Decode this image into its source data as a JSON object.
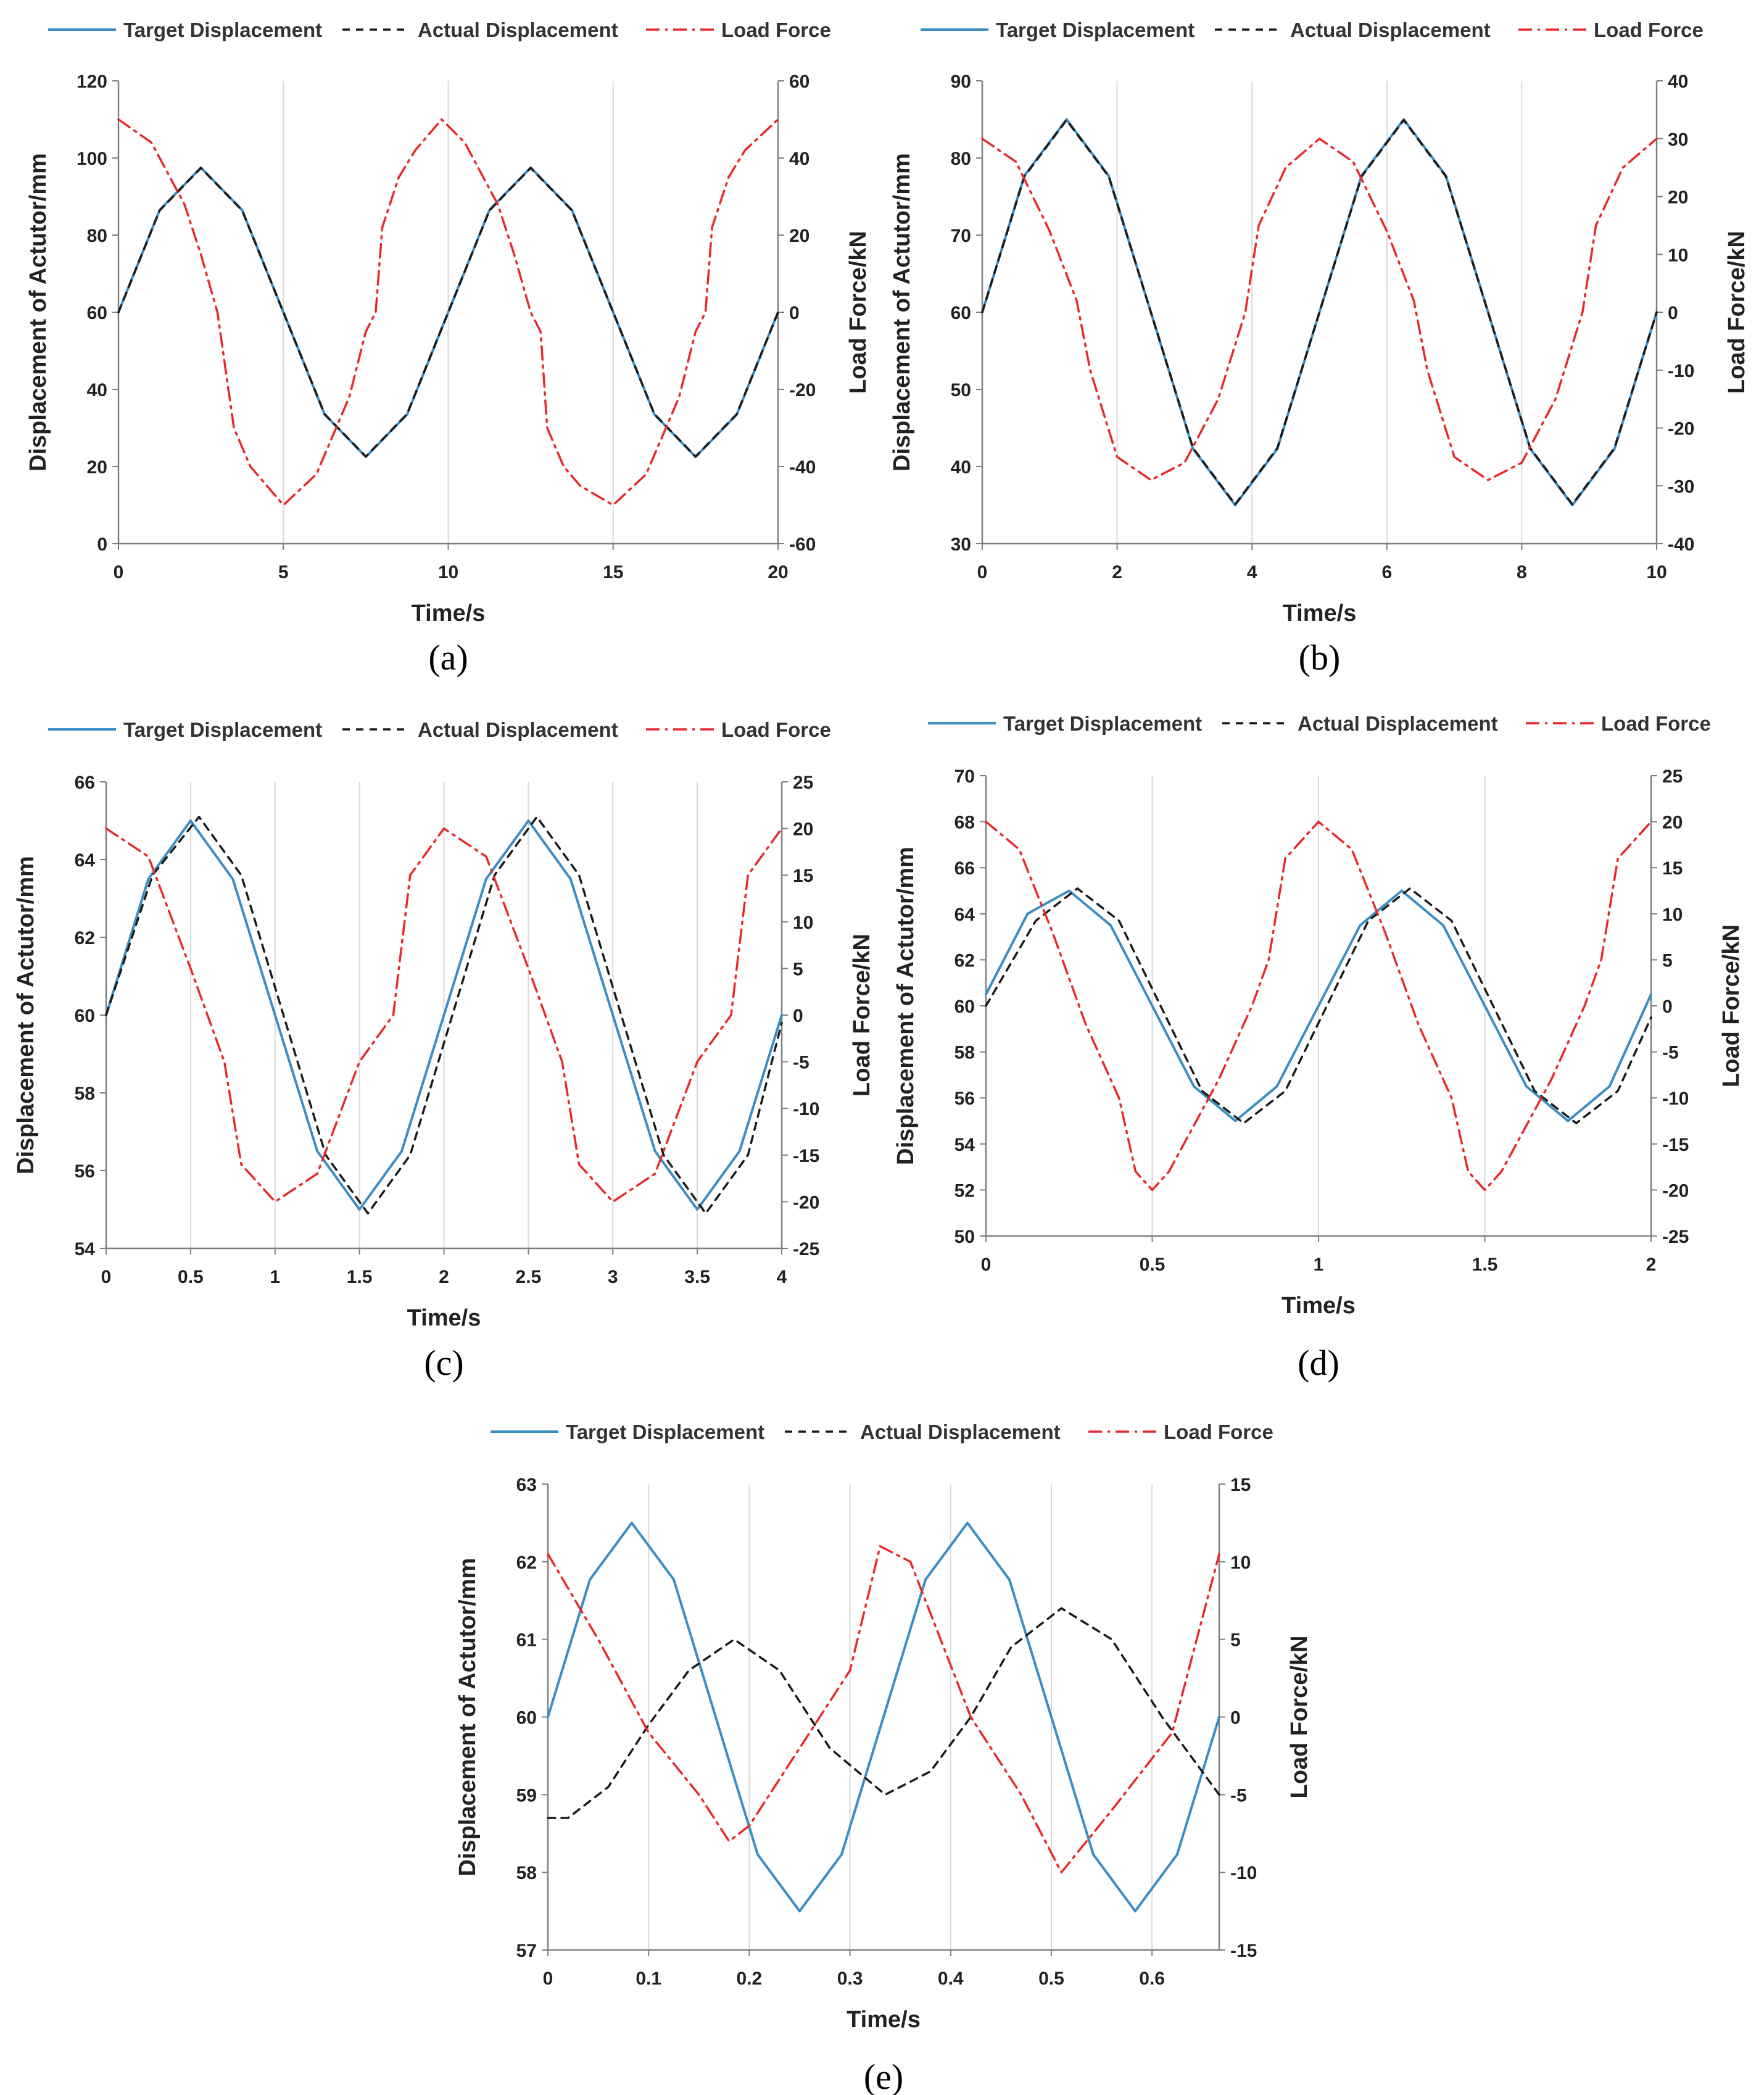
{
  "colors": {
    "target": "#3c8dc4",
    "actual": "#1a1a1a",
    "force": "#e8292b",
    "grid": "#d9d9d9",
    "axis": "#7f7f7f"
  },
  "chart_data": [
    {
      "id": "a",
      "type": "line",
      "panel_label": "(a)",
      "xlabel": "Time/s",
      "ylabel": "Displacement of Actutor/mm",
      "y2label": "Load Force/kN",
      "legend": [
        "Target Displacement",
        "Actual Displacement",
        "Load Force"
      ],
      "legend_position": "top",
      "grid": "vertical",
      "xlim": [
        0,
        20
      ],
      "ylim": [
        0,
        120
      ],
      "y2lim": [
        -60,
        60
      ],
      "xticks": [
        0,
        5,
        10,
        15,
        20
      ],
      "xtick_labels": [
        "0",
        "5",
        "10",
        "15",
        "20"
      ],
      "yticks": [
        0,
        20,
        40,
        60,
        80,
        100,
        120
      ],
      "ytick_labels": [
        "0",
        "20",
        "40",
        "60",
        "80",
        "100",
        "120"
      ],
      "y2ticks": [
        -60,
        -40,
        -20,
        0,
        20,
        40,
        60
      ],
      "y2tick_labels": [
        "-60",
        "-40",
        "-20",
        "0",
        "20",
        "40",
        "60"
      ],
      "series": [
        {
          "name": "Target Displacement",
          "axis": "left",
          "style": "solid",
          "x": [
            0,
            1.25,
            2.5,
            3.75,
            5,
            6.25,
            7.5,
            8.75,
            10,
            11.25,
            12.5,
            13.75,
            15,
            16.25,
            17.5,
            18.75,
            20
          ],
          "y": [
            60,
            86.5,
            97.5,
            86.5,
            60,
            33.5,
            22.5,
            33.5,
            60,
            86.5,
            97.5,
            86.5,
            60,
            33.5,
            22.5,
            33.5,
            60
          ]
        },
        {
          "name": "Actual Displacement",
          "axis": "left",
          "style": "dashed",
          "x": [
            0,
            1.25,
            2.5,
            3.75,
            5,
            6.25,
            7.5,
            8.75,
            10,
            11.25,
            12.5,
            13.75,
            15,
            16.25,
            17.5,
            18.75,
            20
          ],
          "y": [
            60,
            86.4,
            97.4,
            86.4,
            60,
            33.6,
            22.6,
            33.6,
            60,
            86.4,
            97.4,
            86.4,
            60,
            33.6,
            22.6,
            33.6,
            60
          ]
        },
        {
          "name": "Load Force",
          "axis": "right",
          "style": "dashdot",
          "x": [
            0,
            1,
            2,
            2.5,
            3,
            3.5,
            4,
            5,
            6,
            7,
            7.5,
            7.8,
            8,
            8.5,
            9,
            9.8,
            10.5,
            11.5,
            12,
            12.5,
            12.8,
            13,
            13.5,
            14,
            15,
            16,
            17,
            17.5,
            17.8,
            18,
            18.5,
            19,
            20
          ],
          "y": [
            50,
            44,
            28,
            15,
            0,
            -30,
            -40,
            -50,
            -42,
            -22,
            -5,
            0,
            22,
            35,
            42,
            50,
            44,
            28,
            15,
            0,
            -5,
            -30,
            -40,
            -45,
            -50,
            -42,
            -22,
            -5,
            0,
            22,
            35,
            42,
            50
          ]
        }
      ]
    },
    {
      "id": "b",
      "type": "line",
      "panel_label": "(b)",
      "xlabel": "Time/s",
      "ylabel": "Displacement of Actutor/mm",
      "y2label": "Load Force/kN",
      "legend": [
        "Target Displacement",
        "Actual Displacement",
        "Load Force"
      ],
      "legend_position": "top",
      "grid": "vertical",
      "xlim": [
        0,
        10
      ],
      "ylim": [
        30,
        90
      ],
      "y2lim": [
        -40,
        40
      ],
      "xticks": [
        0,
        2,
        4,
        6,
        8,
        10
      ],
      "xtick_labels": [
        "0",
        "2",
        "4",
        "6",
        "8",
        "10"
      ],
      "yticks": [
        30,
        40,
        50,
        60,
        70,
        80,
        90
      ],
      "ytick_labels": [
        "30",
        "40",
        "50",
        "60",
        "70",
        "80",
        "90"
      ],
      "y2ticks": [
        -40,
        -30,
        -20,
        -10,
        0,
        10,
        20,
        30,
        40
      ],
      "y2tick_labels": [
        "-40",
        "-30",
        "-20",
        "-10",
        "0",
        "10",
        "20",
        "30",
        "40"
      ],
      "series": [
        {
          "name": "Target Displacement",
          "axis": "left",
          "style": "solid",
          "x": [
            0,
            0.625,
            1.25,
            1.875,
            2.5,
            3.125,
            3.75,
            4.375,
            5,
            5.625,
            6.25,
            6.875,
            7.5,
            8.125,
            8.75,
            9.375,
            10
          ],
          "y": [
            60,
            77.7,
            85,
            77.7,
            60,
            42.3,
            35,
            42.3,
            60,
            77.7,
            85,
            77.7,
            60,
            42.3,
            35,
            42.3,
            60
          ]
        },
        {
          "name": "Actual Displacement",
          "axis": "left",
          "style": "dashed",
          "x": [
            0,
            0.625,
            1.25,
            1.875,
            2.5,
            3.125,
            3.75,
            4.375,
            5,
            5.625,
            6.25,
            6.875,
            7.5,
            8.125,
            8.75,
            9.375,
            10
          ],
          "y": [
            60,
            77.6,
            84.9,
            77.6,
            60,
            42.4,
            35.1,
            42.4,
            60,
            77.6,
            84.9,
            77.6,
            60,
            42.4,
            35.1,
            42.4,
            60
          ]
        },
        {
          "name": "Load Force",
          "axis": "right",
          "style": "dashdot",
          "x": [
            0,
            0.5,
            1,
            1.4,
            1.6,
            2,
            2.5,
            3,
            3.5,
            3.9,
            4.1,
            4.5,
            5,
            5.5,
            6,
            6.4,
            6.6,
            7,
            7.5,
            8,
            8.5,
            8.9,
            9.1,
            9.5,
            10
          ],
          "y": [
            30,
            26,
            14,
            2,
            -10,
            -25,
            -29,
            -26,
            -15,
            0,
            15,
            25,
            30,
            26,
            14,
            2,
            -10,
            -25,
            -29,
            -26,
            -15,
            0,
            15,
            25,
            30
          ]
        }
      ]
    },
    {
      "id": "c",
      "type": "line",
      "panel_label": "(c)",
      "xlabel": "Time/s",
      "ylabel": "Displacement of Actutor/mm",
      "y2label": "Load Force/kN",
      "legend": [
        "Target Displacement",
        "Actual Displacement",
        "Load Force"
      ],
      "legend_position": "top",
      "grid": "vertical",
      "xlim": [
        0,
        4
      ],
      "ylim": [
        54,
        66
      ],
      "y2lim": [
        -25,
        25
      ],
      "xticks": [
        0,
        0.5,
        1,
        1.5,
        2,
        2.5,
        3,
        3.5,
        4
      ],
      "xtick_labels": [
        "0",
        "0.5",
        "1",
        "1.5",
        "2",
        "2.5",
        "3",
        "3.5",
        "4"
      ],
      "yticks": [
        54,
        56,
        58,
        60,
        62,
        64,
        66
      ],
      "ytick_labels": [
        "54",
        "56",
        "58",
        "60",
        "62",
        "64",
        "66"
      ],
      "y2ticks": [
        -25,
        -20,
        -15,
        -10,
        -5,
        0,
        5,
        10,
        15,
        20,
        25
      ],
      "y2tick_labels": [
        "-25",
        "-20",
        "-15",
        "-10",
        "-5",
        "0",
        "5",
        "10",
        "15",
        "20",
        "25"
      ],
      "series": [
        {
          "name": "Target Displacement",
          "axis": "left",
          "style": "solid",
          "x": [
            0,
            0.25,
            0.5,
            0.75,
            1,
            1.25,
            1.5,
            1.75,
            2,
            2.25,
            2.5,
            2.75,
            3,
            3.25,
            3.5,
            3.75,
            4
          ],
          "y": [
            60,
            63.5,
            65,
            63.5,
            60,
            56.5,
            55,
            56.5,
            60,
            63.5,
            65,
            63.5,
            60,
            56.5,
            55,
            56.5,
            60
          ]
        },
        {
          "name": "Actual Displacement",
          "axis": "left",
          "style": "dashed",
          "x": [
            0,
            0.275,
            0.55,
            0.8,
            1.05,
            1.3,
            1.55,
            1.8,
            2.05,
            2.3,
            2.55,
            2.8,
            3.05,
            3.3,
            3.55,
            3.8,
            4
          ],
          "y": [
            60,
            63.6,
            65.1,
            63.6,
            60,
            56.4,
            54.9,
            56.4,
            60,
            63.6,
            65.1,
            63.6,
            60,
            56.4,
            54.9,
            56.4,
            59.8
          ]
        },
        {
          "name": "Load Force",
          "axis": "right",
          "style": "dashdot",
          "x": [
            0,
            0.25,
            0.5,
            0.7,
            0.8,
            1,
            1.25,
            1.5,
            1.7,
            1.8,
            2,
            2.25,
            2.5,
            2.7,
            2.8,
            3,
            3.25,
            3.5,
            3.7,
            3.8,
            4
          ],
          "y": [
            20,
            17,
            5,
            -5,
            -16,
            -20,
            -17,
            -5,
            0,
            15,
            20,
            17,
            5,
            -5,
            -16,
            -20,
            -17,
            -5,
            0,
            15,
            20
          ]
        }
      ]
    },
    {
      "id": "d",
      "type": "line",
      "panel_label": "(d)",
      "xlabel": "Time/s",
      "ylabel": "Displacement of Actutor/mm",
      "y2label": "Load Force/kN",
      "legend": [
        "Target Displacement",
        "Actual Displacement",
        "Load Force"
      ],
      "legend_position": "top",
      "grid": "vertical",
      "xlim": [
        0,
        2
      ],
      "ylim": [
        50,
        70
      ],
      "y2lim": [
        -25,
        25
      ],
      "xticks": [
        0,
        0.5,
        1,
        1.5,
        2
      ],
      "xtick_labels": [
        "0",
        "0.5",
        "1",
        "1.5",
        "2"
      ],
      "yticks": [
        50,
        52,
        54,
        56,
        58,
        60,
        62,
        64,
        66,
        68,
        70
      ],
      "ytick_labels": [
        "50",
        "52",
        "54",
        "56",
        "58",
        "60",
        "62",
        "64",
        "66",
        "68",
        "70"
      ],
      "y2ticks": [
        -25,
        -20,
        -15,
        -10,
        -5,
        0,
        5,
        10,
        15,
        20,
        25
      ],
      "y2tick_labels": [
        "-25",
        "-20",
        "-15",
        "-10",
        "-5",
        "0",
        "5",
        "10",
        "15",
        "20",
        "25"
      ],
      "series": [
        {
          "name": "Target Displacement",
          "axis": "left",
          "style": "solid",
          "x": [
            0,
            0.125,
            0.25,
            0.375,
            0.5,
            0.625,
            0.75,
            0.875,
            1,
            1.125,
            1.25,
            1.375,
            1.5,
            1.625,
            1.75,
            1.875,
            2
          ],
          "y": [
            60.5,
            64,
            65,
            63.5,
            60,
            56.5,
            55,
            56.5,
            60,
            63.5,
            65,
            63.5,
            60,
            56.5,
            55,
            56.5,
            60.5
          ]
        },
        {
          "name": "Actual Displacement",
          "axis": "left",
          "style": "dashed",
          "x": [
            0,
            0.15,
            0.275,
            0.4,
            0.525,
            0.65,
            0.775,
            0.9,
            1.025,
            1.15,
            1.275,
            1.4,
            1.525,
            1.65,
            1.775,
            1.9,
            2
          ],
          "y": [
            60,
            63.7,
            65.1,
            63.7,
            60,
            56.3,
            54.9,
            56.3,
            60,
            63.7,
            65.1,
            63.7,
            60,
            56.3,
            54.9,
            56.3,
            59.5
          ]
        },
        {
          "name": "Load Force",
          "axis": "right",
          "style": "dashdot",
          "x": [
            0,
            0.1,
            0.2,
            0.3,
            0.4,
            0.45,
            0.5,
            0.55,
            0.7,
            0.8,
            0.85,
            0.9,
            0.95,
            1,
            1.1,
            1.2,
            1.3,
            1.4,
            1.45,
            1.5,
            1.55,
            1.7,
            1.8,
            1.85,
            1.9,
            1.95,
            2
          ],
          "y": [
            20,
            17,
            8,
            -2,
            -10,
            -18,
            -20,
            -18,
            -8,
            0,
            5,
            16,
            18,
            20,
            17,
            8,
            -2,
            -10,
            -18,
            -20,
            -18,
            -8,
            0,
            5,
            16,
            18,
            20
          ]
        }
      ]
    },
    {
      "id": "e",
      "type": "line",
      "panel_label": "(e)",
      "xlabel": "Time/s",
      "ylabel": "Displacement of Actutor/mm",
      "y2label": "Load Force/kN",
      "legend": [
        "Target Displacement",
        "Actual Displacement",
        "Load Force"
      ],
      "legend_position": "top",
      "grid": "vertical",
      "xlim": [
        0,
        0.6667
      ],
      "ylim": [
        57,
        63
      ],
      "y2lim": [
        -15,
        15
      ],
      "xticks": [
        0,
        0.1,
        0.2,
        0.3,
        0.4,
        0.5,
        0.6
      ],
      "xtick_labels": [
        "0",
        "0.1",
        "0.2",
        "0.3",
        "0.4",
        "0.5",
        "0.6"
      ],
      "yticks": [
        57,
        58,
        59,
        60,
        61,
        62,
        63
      ],
      "ytick_labels": [
        "57",
        "58",
        "59",
        "60",
        "61",
        "62",
        "63"
      ],
      "y2ticks": [
        -15,
        -10,
        -5,
        0,
        5,
        10,
        15
      ],
      "y2tick_labels": [
        "-15",
        "-10",
        "-5",
        "0",
        "5",
        "10",
        "15"
      ],
      "series": [
        {
          "name": "Target Displacement",
          "axis": "left",
          "style": "solid",
          "x": [
            0,
            0.0417,
            0.0833,
            0.125,
            0.1667,
            0.2083,
            0.25,
            0.2917,
            0.3333,
            0.375,
            0.4167,
            0.4583,
            0.5,
            0.5417,
            0.5833,
            0.625,
            0.6667
          ],
          "y": [
            60,
            61.77,
            62.5,
            61.77,
            60,
            58.23,
            57.5,
            58.23,
            60,
            61.77,
            62.5,
            61.77,
            60,
            58.23,
            57.5,
            58.23,
            60
          ]
        },
        {
          "name": "Actual Displacement",
          "axis": "left",
          "style": "dashed",
          "x": [
            0,
            0.02,
            0.06,
            0.1,
            0.14,
            0.185,
            0.23,
            0.28,
            0.335,
            0.38,
            0.42,
            0.46,
            0.51,
            0.56,
            0.61,
            0.6667
          ],
          "y": [
            58.7,
            58.7,
            59.1,
            59.9,
            60.6,
            61,
            60.6,
            59.6,
            59,
            59.3,
            60,
            60.9,
            61.4,
            61,
            60,
            59
          ]
        },
        {
          "name": "Load Force",
          "axis": "right",
          "style": "dashdot",
          "x": [
            0,
            0.05,
            0.1,
            0.15,
            0.18,
            0.2,
            0.25,
            0.3,
            0.33,
            0.36,
            0.42,
            0.47,
            0.51,
            0.56,
            0.62,
            0.6667
          ],
          "y": [
            10.5,
            5,
            -1,
            -5,
            -8,
            -7,
            -2,
            3,
            11,
            10,
            0,
            -5,
            -10,
            -6,
            -1,
            10.5
          ]
        }
      ]
    }
  ]
}
